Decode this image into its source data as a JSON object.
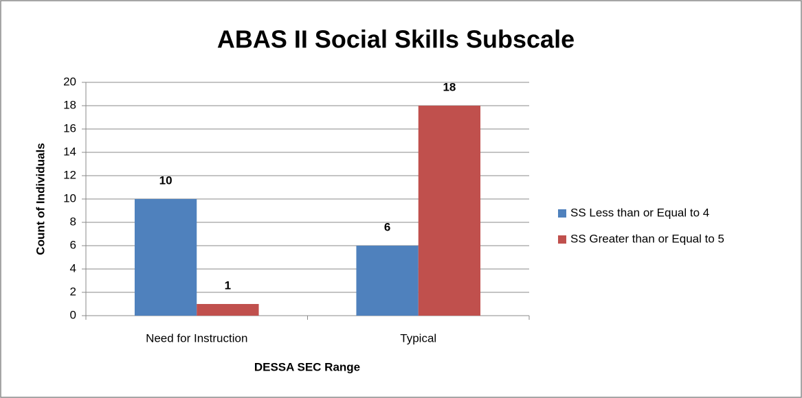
{
  "chart_data": {
    "type": "bar",
    "title": "ABAS II Social Skills Subscale",
    "x_label": "DESSA SEC Range",
    "y_label": "Count of Individuals",
    "categories": [
      "Need for Instruction",
      "Typical"
    ],
    "series": [
      {
        "name": "SS Less than or Equal to 4",
        "color": "#4f81bd",
        "values": [
          10,
          6
        ]
      },
      {
        "name": "SS Greater than or Equal to 5",
        "color": "#c0504d",
        "values": [
          1,
          18
        ]
      }
    ],
    "ylim": [
      0,
      20
    ],
    "yticks": [
      0,
      2,
      4,
      6,
      8,
      10,
      12,
      14,
      16,
      18,
      20
    ],
    "grid": true,
    "legend": "right"
  }
}
